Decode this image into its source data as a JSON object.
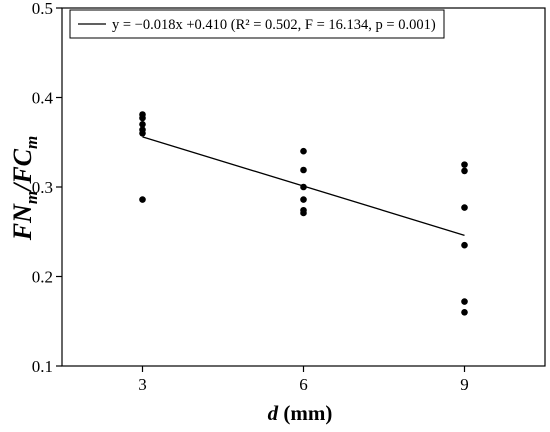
{
  "chart_data": {
    "type": "scatter",
    "xlabel_var": "d",
    "xlabel_unit": " (mm)",
    "ylabel_parts": [
      "FN",
      "m",
      "/FC",
      "m"
    ],
    "xticks": [
      3,
      6,
      9
    ],
    "yticks": [
      0.1,
      0.2,
      0.3,
      0.4,
      0.5
    ],
    "xlim": [
      1.5,
      10.5
    ],
    "ylim": [
      0.1,
      0.5
    ],
    "grid": false,
    "legend_position": "top-left",
    "points": [
      {
        "x": 3,
        "y": 0.381
      },
      {
        "x": 3,
        "y": 0.377
      },
      {
        "x": 3,
        "y": 0.37
      },
      {
        "x": 3,
        "y": 0.364
      },
      {
        "x": 3,
        "y": 0.36
      },
      {
        "x": 3,
        "y": 0.286
      },
      {
        "x": 6,
        "y": 0.34
      },
      {
        "x": 6,
        "y": 0.319
      },
      {
        "x": 6,
        "y": 0.3
      },
      {
        "x": 6,
        "y": 0.286
      },
      {
        "x": 6,
        "y": 0.274
      },
      {
        "x": 6,
        "y": 0.271
      },
      {
        "x": 9,
        "y": 0.325
      },
      {
        "x": 9,
        "y": 0.318
      },
      {
        "x": 9,
        "y": 0.277
      },
      {
        "x": 9,
        "y": 0.235
      },
      {
        "x": 9,
        "y": 0.172
      },
      {
        "x": 9,
        "y": 0.16
      }
    ],
    "fit_line": {
      "label": "y = −0.018x +0.410 (R² = 0.502, F = 16.134, p = 0.001)",
      "x_start": 3,
      "x_end": 9,
      "y_start": 0.356,
      "y_end": 0.246
    },
    "colors": {
      "points": "#000000",
      "line": "#000000",
      "axes": "#000000"
    }
  }
}
